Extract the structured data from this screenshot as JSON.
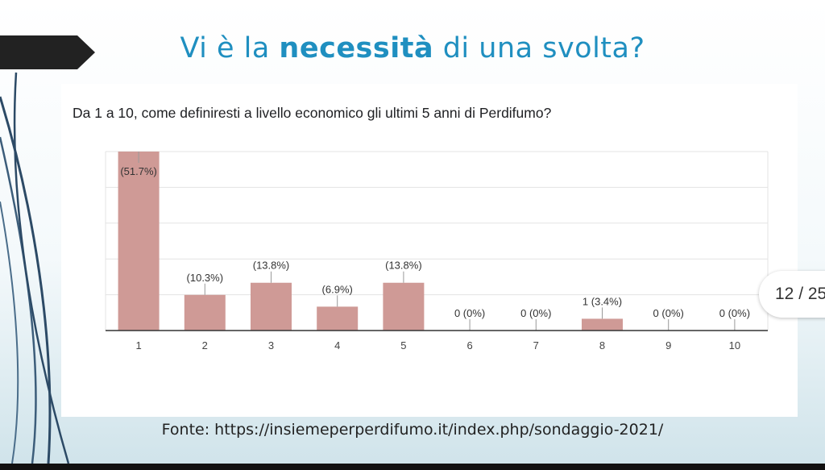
{
  "slide": {
    "title_pre": "Vi è la ",
    "title_bold": "necessità",
    "title_post": " di una svolta?",
    "source": "Fonte: https://insiemeperperdifumo.it/index.php/sondaggio-2021/",
    "page_counter": "12 / 25",
    "accent_color": "#1f8fc0"
  },
  "chart_data": {
    "type": "bar",
    "title": "Da 1 a 10, come definiresti a livello economico gli ultimi 5 anni di Perdifumo?",
    "categories": [
      "1",
      "2",
      "3",
      "4",
      "5",
      "6",
      "7",
      "8",
      "9",
      "10"
    ],
    "values": [
      51.7,
      10.3,
      13.8,
      6.9,
      13.8,
      0,
      0,
      3.4,
      0,
      0
    ],
    "labels": [
      "(51.7%)",
      "(10.3%)",
      "(13.8%)",
      "(6.9%)",
      "(13.8%)",
      "0 (0%)",
      "0 (0%)",
      "1 (3.4%)",
      "0 (0%)",
      "0 (0%)"
    ],
    "ylim": [
      0,
      51.7
    ],
    "grid": true,
    "bar_color": "#cf9a96"
  }
}
